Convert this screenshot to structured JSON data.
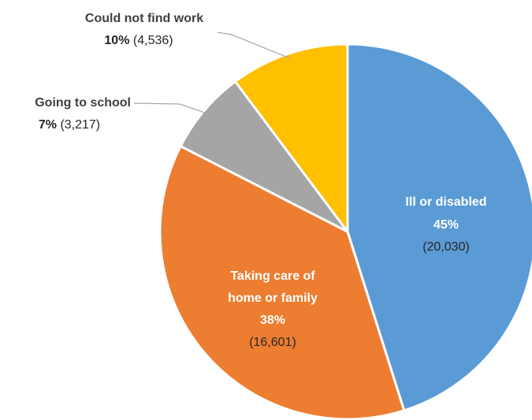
{
  "chart_data": {
    "type": "pie",
    "title": "",
    "slices": [
      {
        "label": "Ill or disabled",
        "percent": "45%",
        "count": "(20,030)",
        "value": 20030,
        "color": "#5B9BD5"
      },
      {
        "label": "Taking care of home or family",
        "label_lines": [
          "Taking care of",
          "home or family"
        ],
        "percent": "38%",
        "count": "(16,601)",
        "value": 16601,
        "color": "#ED7D31"
      },
      {
        "label": "Going to school",
        "percent": "7%",
        "count": "(3,217)",
        "value": 3217,
        "color": "#A5A5A5"
      },
      {
        "label": "Could not find work",
        "percent": "10%",
        "count": "(4,536)",
        "value": 4536,
        "color": "#FFC000"
      }
    ],
    "start_angle_deg": 0,
    "direction": "clockwise",
    "legend": "none"
  }
}
